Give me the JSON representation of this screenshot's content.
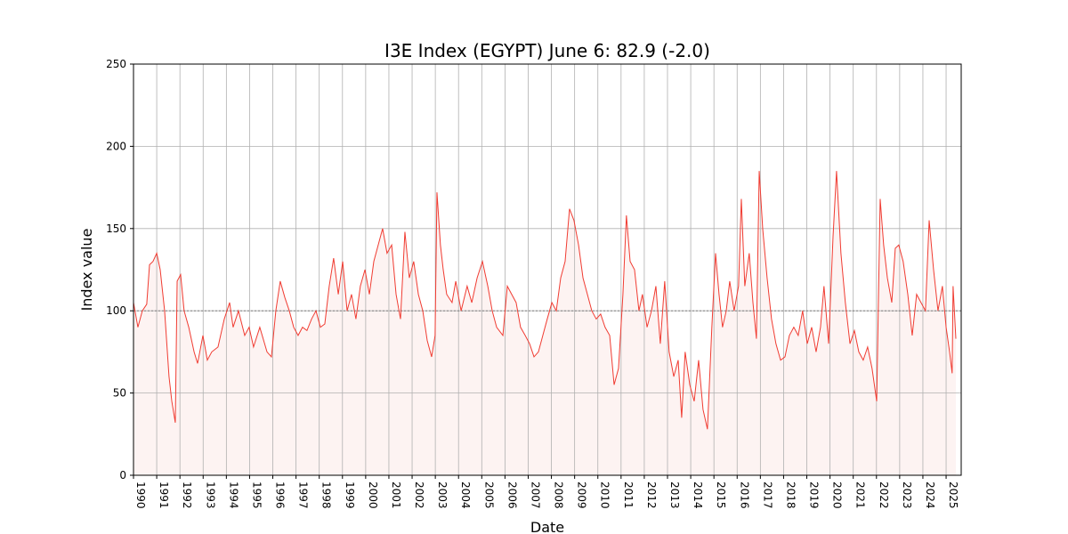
{
  "chart_data": {
    "type": "line",
    "title": "I3E Index (EGYPT) June 6: 82.9 (-2.0)",
    "xlabel": "Date",
    "ylabel": "Index value",
    "x": [
      1990.0,
      1990.19,
      1990.38,
      1990.57,
      1990.69,
      1990.84,
      1991.0,
      1991.15,
      1991.34,
      1991.53,
      1991.65,
      1991.8,
      1991.88,
      1992.03,
      1992.18,
      1992.38,
      1992.61,
      1992.76,
      1992.99,
      1993.18,
      1993.37,
      1993.64,
      1993.91,
      1994.14,
      1994.29,
      1994.52,
      1994.79,
      1994.98,
      1995.17,
      1995.44,
      1995.75,
      1995.94,
      1996.13,
      1996.32,
      1996.52,
      1996.71,
      1996.9,
      1997.09,
      1997.28,
      1997.47,
      1997.67,
      1997.86,
      1998.05,
      1998.24,
      1998.43,
      1998.62,
      1998.82,
      1999.01,
      1999.2,
      1999.39,
      1999.58,
      1999.77,
      1999.97,
      2000.16,
      2000.35,
      2000.54,
      2000.73,
      2000.92,
      2001.12,
      2001.31,
      2001.5,
      2001.69,
      2001.88,
      2002.07,
      2002.27,
      2002.46,
      2002.65,
      2002.84,
      2002.99,
      2003.07,
      2003.22,
      2003.34,
      2003.49,
      2003.72,
      2003.88,
      2004.11,
      2004.37,
      2004.57,
      2004.8,
      2005.03,
      2005.26,
      2005.45,
      2005.64,
      2005.91,
      2006.1,
      2006.29,
      2006.48,
      2006.67,
      2006.87,
      2007.06,
      2007.25,
      2007.44,
      2007.63,
      2007.82,
      2008.02,
      2008.21,
      2008.4,
      2008.59,
      2008.78,
      2008.97,
      2009.17,
      2009.36,
      2009.55,
      2009.74,
      2009.93,
      2010.12,
      2010.31,
      2010.51,
      2010.7,
      2010.89,
      2011.08,
      2011.23,
      2011.39,
      2011.58,
      2011.77,
      2011.92,
      2012.12,
      2012.31,
      2012.5,
      2012.69,
      2012.88,
      2013.07,
      2013.27,
      2013.46,
      2013.61,
      2013.76,
      2013.96,
      2014.15,
      2014.34,
      2014.53,
      2014.72,
      2014.91,
      2015.07,
      2015.22,
      2015.37,
      2015.53,
      2015.68,
      2015.87,
      2016.06,
      2016.18,
      2016.33,
      2016.52,
      2016.68,
      2016.83,
      2016.95,
      2017.1,
      2017.29,
      2017.48,
      2017.67,
      2017.87,
      2018.06,
      2018.25,
      2018.44,
      2018.63,
      2018.82,
      2019.02,
      2019.21,
      2019.4,
      2019.59,
      2019.74,
      2019.94,
      2020.13,
      2020.28,
      2020.47,
      2020.66,
      2020.86,
      2021.05,
      2021.24,
      2021.43,
      2021.62,
      2021.81,
      2022.01,
      2022.16,
      2022.31,
      2022.47,
      2022.66,
      2022.81,
      2022.96,
      2023.15,
      2023.35,
      2023.54,
      2023.73,
      2023.92,
      2024.11,
      2024.27,
      2024.46,
      2024.65,
      2024.84,
      2025.0,
      2025.15,
      2025.26,
      2025.3,
      2025.42
    ],
    "series": [
      {
        "name": "I3E Index",
        "color": "#f03c32",
        "values": [
          105,
          90,
          100,
          104,
          128,
          130,
          135,
          125,
          100,
          60,
          45,
          32,
          118,
          122,
          100,
          90,
          75,
          68,
          85,
          70,
          75,
          78,
          95,
          105,
          90,
          100,
          85,
          90,
          78,
          90,
          75,
          72,
          100,
          118,
          108,
          100,
          90,
          85,
          90,
          88,
          95,
          100,
          90,
          92,
          115,
          132,
          110,
          130,
          100,
          110,
          95,
          115,
          125,
          110,
          130,
          140,
          150,
          135,
          140,
          110,
          95,
          148,
          120,
          130,
          110,
          100,
          82,
          72,
          85,
          172,
          140,
          125,
          110,
          105,
          118,
          100,
          115,
          105,
          120,
          130,
          115,
          100,
          90,
          85,
          115,
          110,
          105,
          90,
          85,
          80,
          72,
          75,
          85,
          95,
          105,
          100,
          120,
          130,
          162,
          155,
          140,
          120,
          110,
          100,
          95,
          98,
          90,
          85,
          55,
          65,
          110,
          158,
          130,
          125,
          100,
          110,
          90,
          100,
          115,
          80,
          118,
          75,
          60,
          70,
          35,
          75,
          55,
          45,
          70,
          40,
          28,
          90,
          135,
          110,
          90,
          100,
          118,
          100,
          115,
          168,
          115,
          135,
          105,
          83,
          185,
          150,
          120,
          95,
          80,
          70,
          72,
          85,
          90,
          85,
          100,
          80,
          90,
          75,
          90,
          115,
          80,
          145,
          185,
          135,
          105,
          80,
          88,
          75,
          70,
          78,
          65,
          45,
          168,
          140,
          120,
          105,
          138,
          140,
          130,
          110,
          85,
          110,
          105,
          100,
          155,
          125,
          100,
          115,
          90,
          75,
          62,
          115,
          83
        ]
      }
    ],
    "reference_line": 100,
    "fill_color": "#fdf3f2",
    "xlim": [
      1990,
      2025.65
    ],
    "xticks": [
      1990,
      1991,
      1992,
      1993,
      1994,
      1995,
      1996,
      1997,
      1998,
      1999,
      2000,
      2001,
      2002,
      2003,
      2004,
      2005,
      2006,
      2007,
      2008,
      2009,
      2010,
      2011,
      2012,
      2013,
      2014,
      2015,
      2016,
      2017,
      2018,
      2019,
      2020,
      2021,
      2022,
      2023,
      2024,
      2025
    ],
    "ylim": [
      0,
      250
    ],
    "yticks": [
      0,
      50,
      100,
      150,
      200,
      250
    ],
    "grid": true
  }
}
